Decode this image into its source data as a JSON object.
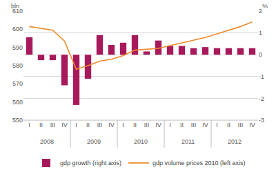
{
  "chart_data": {
    "type": "bar",
    "categories": [
      "I",
      "II",
      "III",
      "IV",
      "I",
      "II",
      "III",
      "IV",
      "I",
      "II",
      "III",
      "IV",
      "I",
      "II",
      "III",
      "IV",
      "I",
      "II",
      "III",
      "IV"
    ],
    "category_groups": [
      "2008",
      "2008",
      "2008",
      "2008",
      "2009",
      "2009",
      "2009",
      "2009",
      "2010",
      "2010",
      "2010",
      "2010",
      "2011",
      "2011",
      "2011",
      "2011",
      "2012",
      "2012",
      "2012",
      "2012"
    ],
    "ylabel": "bln",
    "y2label": "%",
    "series": [
      {
        "name": "gdp growth (right axis)",
        "type": "bar",
        "axis": "y2",
        "color": "#a8195c",
        "values": [
          0.8,
          -0.25,
          -0.25,
          -1.4,
          -2.3,
          -1.1,
          0.9,
          0.45,
          0.55,
          0.9,
          0.15,
          0.65,
          0.4,
          0.4,
          0.3,
          0.35,
          0.3,
          0.3,
          0.3,
          0.3
        ]
      },
      {
        "name": "gdp volume prices 2010 (left axis)",
        "type": "line",
        "color": "#f0892a",
        "values": [
          601.5,
          600.5,
          599.5,
          593.5,
          578,
          580,
          582.5,
          583.5,
          585.5,
          588.5,
          589,
          589.5,
          591,
          592.5,
          594,
          595.5,
          597.5,
          599.5,
          601.5,
          604
        ]
      }
    ],
    "ylim": [
      550,
      610
    ],
    "yticks": [
      550,
      560,
      570,
      580,
      590,
      600,
      610
    ],
    "y2lim": [
      -3,
      2
    ],
    "y2ticks": [
      -3,
      -2,
      -1,
      0,
      1,
      2
    ],
    "grid": true,
    "legend": "bottom"
  }
}
